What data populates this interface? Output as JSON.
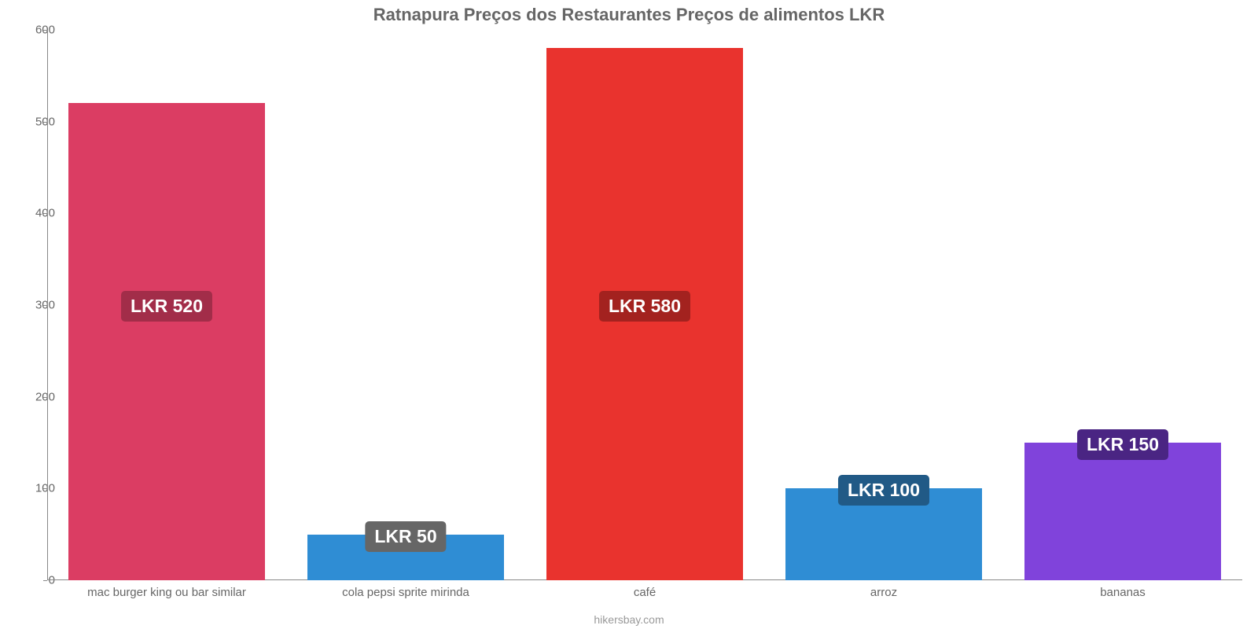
{
  "chart": {
    "type": "bar",
    "title": "Ratnapura Preços dos Restaurantes Preços de alimentos LKR",
    "title_fontsize": 22,
    "title_color": "#666666",
    "source": "hikersbay.com",
    "source_color": "#999999",
    "background_color": "#ffffff",
    "axis_color": "#888888",
    "tick_label_color": "#666666",
    "tick_label_fontsize": 15,
    "ylim": [
      0,
      600
    ],
    "ytick_step": 100,
    "yticks": [
      0,
      100,
      200,
      300,
      400,
      500,
      600
    ],
    "bar_width": 0.82,
    "value_label_fontsize": 23,
    "value_label_text_color": "#ffffff",
    "categories": [
      "mac burger king ou bar similar",
      "cola pepsi sprite mirinda",
      "café",
      "arroz",
      "bananas"
    ],
    "values": [
      520,
      50,
      580,
      100,
      150
    ],
    "value_labels": [
      "LKR 520",
      "LKR 50",
      "LKR 580",
      "LKR 100",
      "LKR 150"
    ],
    "bar_colors": [
      "#db3d63",
      "#2f8dd4",
      "#e9332e",
      "#2f8dd4",
      "#8043db"
    ],
    "badge_colors": [
      "#a22d49",
      "#666666",
      "#a3221f",
      "#215a86",
      "#4a2583"
    ]
  }
}
